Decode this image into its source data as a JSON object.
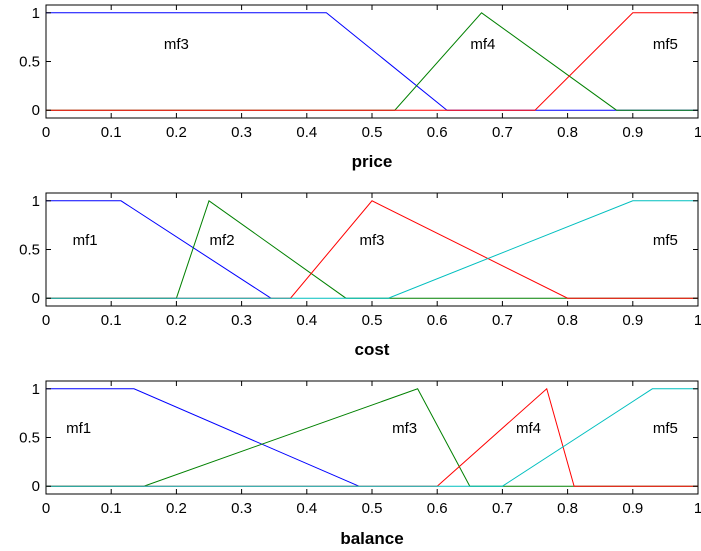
{
  "chart_data": [
    {
      "type": "line",
      "xlabel": "price",
      "xlim": [
        0,
        1
      ],
      "ylim": [
        -0.08,
        1.08
      ],
      "xticks": [
        "0",
        "0.1",
        "0.2",
        "0.3",
        "0.4",
        "0.5",
        "0.6",
        "0.7",
        "0.8",
        "0.9",
        "1"
      ],
      "yticks": [
        "0",
        "0.5",
        "1"
      ],
      "series": [
        {
          "color": "#0000ff",
          "x": [
            0,
            0.43,
            0.615,
            1
          ],
          "y": [
            1,
            1,
            0,
            0
          ]
        },
        {
          "color": "#008000",
          "x": [
            0,
            0.535,
            0.668,
            0.875,
            1
          ],
          "y": [
            0,
            0,
            1,
            0,
            0
          ]
        },
        {
          "color": "#ff0000",
          "x": [
            0,
            0.75,
            0.9,
            1
          ],
          "y": [
            0,
            0,
            1,
            1
          ]
        }
      ],
      "annotations": [
        {
          "text": "mf3",
          "x": 0.2,
          "y": 0.68
        },
        {
          "text": "mf4",
          "x": 0.67,
          "y": 0.68
        },
        {
          "text": "mf5",
          "x": 0.95,
          "y": 0.68
        }
      ]
    },
    {
      "type": "line",
      "xlabel": "cost",
      "xlim": [
        0,
        1
      ],
      "ylim": [
        -0.08,
        1.08
      ],
      "xticks": [
        "0",
        "0.1",
        "0.2",
        "0.3",
        "0.4",
        "0.5",
        "0.6",
        "0.7",
        "0.8",
        "0.9",
        "1"
      ],
      "yticks": [
        "0",
        "0.5",
        "1"
      ],
      "series": [
        {
          "color": "#0000ff",
          "x": [
            0,
            0.115,
            0.345
          ],
          "y": [
            1,
            1,
            0
          ]
        },
        {
          "color": "#008000",
          "x": [
            0,
            0.2,
            0.25,
            0.46,
            0.8,
            1
          ],
          "y": [
            0,
            0,
            1,
            0,
            0,
            0
          ]
        },
        {
          "color": "#ff0000",
          "x": [
            0,
            0.375,
            0.5,
            0.8,
            1
          ],
          "y": [
            0,
            0,
            1,
            0,
            0
          ]
        },
        {
          "color": "#00bfbf",
          "x": [
            0,
            0.525,
            0.9,
            1
          ],
          "y": [
            0,
            0,
            1,
            1
          ]
        }
      ],
      "annotations": [
        {
          "text": "mf1",
          "x": 0.06,
          "y": 0.6
        },
        {
          "text": "mf2",
          "x": 0.27,
          "y": 0.6
        },
        {
          "text": "mf3",
          "x": 0.5,
          "y": 0.6
        },
        {
          "text": "mf5",
          "x": 0.95,
          "y": 0.6
        }
      ]
    },
    {
      "type": "line",
      "xlabel": "balance",
      "xlim": [
        0,
        1
      ],
      "ylim": [
        -0.08,
        1.08
      ],
      "xticks": [
        "0",
        "0.1",
        "0.2",
        "0.3",
        "0.4",
        "0.5",
        "0.6",
        "0.7",
        "0.8",
        "0.9",
        "1"
      ],
      "yticks": [
        "0",
        "0.5",
        "1"
      ],
      "series": [
        {
          "color": "#0000ff",
          "x": [
            0,
            0.135,
            0.48
          ],
          "y": [
            1,
            1,
            0
          ]
        },
        {
          "color": "#008000",
          "x": [
            0,
            0.15,
            0.57,
            0.65,
            1
          ],
          "y": [
            0,
            0,
            1,
            0,
            0
          ]
        },
        {
          "color": "#ff0000",
          "x": [
            0,
            0.6,
            0.768,
            0.81,
            1
          ],
          "y": [
            0,
            0,
            1,
            0,
            0
          ]
        },
        {
          "color": "#00bfbf",
          "x": [
            0,
            0.7,
            0.93,
            1
          ],
          "y": [
            0,
            0,
            1,
            1
          ]
        }
      ],
      "annotations": [
        {
          "text": "mf1",
          "x": 0.05,
          "y": 0.6
        },
        {
          "text": "mf3",
          "x": 0.55,
          "y": 0.6
        },
        {
          "text": "mf4",
          "x": 0.74,
          "y": 0.6
        },
        {
          "text": "mf5",
          "x": 0.95,
          "y": 0.6
        }
      ]
    }
  ]
}
